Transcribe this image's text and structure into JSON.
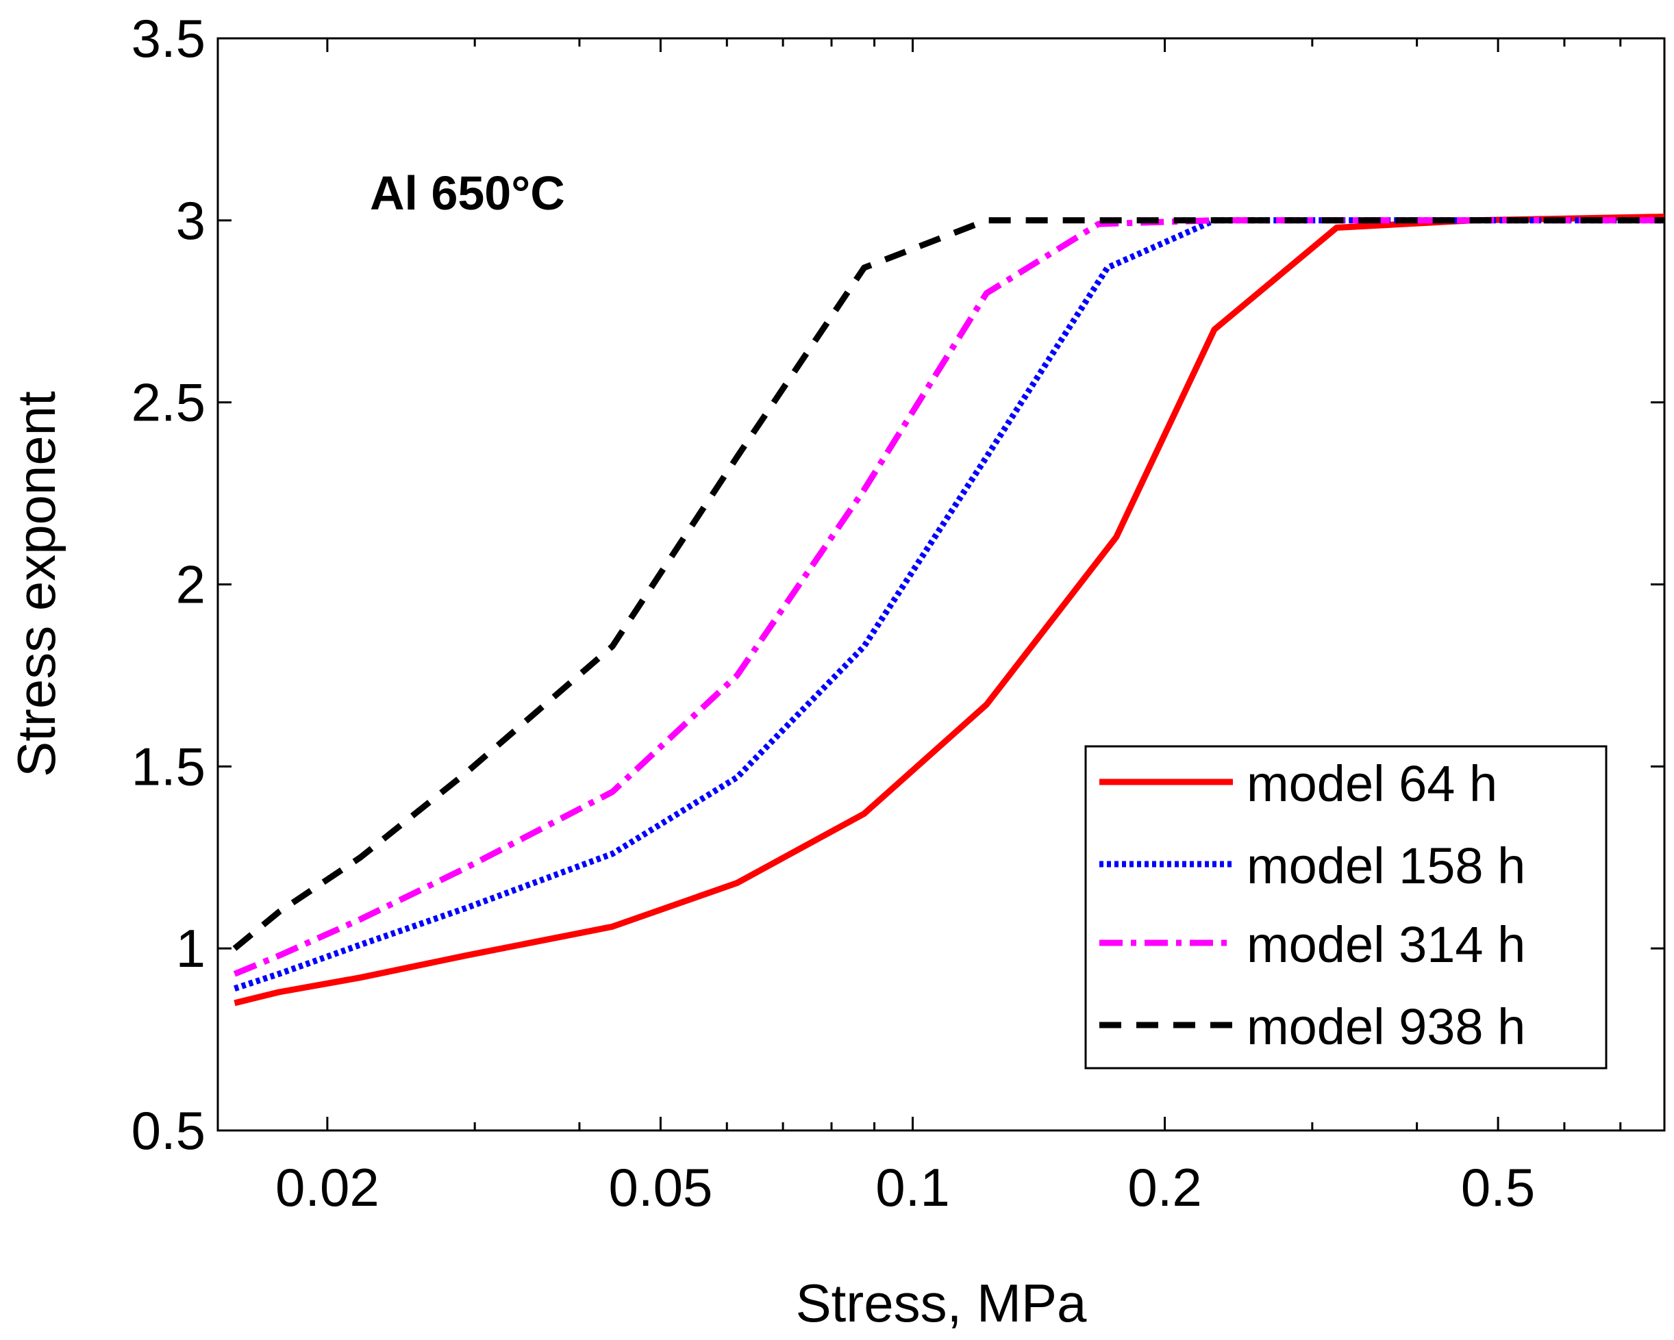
{
  "chart_data": {
    "type": "line",
    "title": "",
    "annotation": "Al 650°C",
    "xlabel": "Stress, MPa",
    "ylabel": "Stress exponent",
    "xscale": "log",
    "xlim": [
      0.0148,
      0.79
    ],
    "ylim": [
      0.5,
      3.5
    ],
    "xticks_major": [
      0.02,
      0.05,
      0.1,
      0.2,
      0.5
    ],
    "xtick_labels": [
      "0.02",
      "0.05",
      "0.1",
      "0.2",
      "0.5"
    ],
    "xticks_minor": [
      0.03,
      0.04,
      0.06,
      0.07,
      0.08,
      0.09,
      0.3,
      0.4,
      0.6,
      0.7
    ],
    "yticks": [
      0.5,
      1,
      1.5,
      2,
      2.5,
      3,
      3.5
    ],
    "ytick_labels": [
      "0.5",
      "1",
      "1.5",
      "2",
      "2.5",
      "3",
      "3.5"
    ],
    "legend_position": "bottom-right",
    "series": [
      {
        "name": "model 64 h",
        "color": "#ff0000",
        "style": "solid",
        "x": [
          0.0155,
          0.0175,
          0.0219,
          0.0292,
          0.0438,
          0.0617,
          0.0875,
          0.1225,
          0.175,
          0.2292,
          0.3208,
          0.4667,
          0.79
        ],
        "y": [
          0.85,
          0.88,
          0.92,
          0.98,
          1.06,
          1.18,
          1.37,
          1.67,
          2.13,
          2.7,
          2.98,
          3.0,
          3.01
        ]
      },
      {
        "name": "model 158 h",
        "color": "#0000ff",
        "style": "dotted",
        "x": [
          0.0155,
          0.0175,
          0.0219,
          0.0292,
          0.0438,
          0.0617,
          0.0875,
          0.1225,
          0.1708,
          0.2292,
          0.3208,
          0.79
        ],
        "y": [
          0.89,
          0.93,
          1.01,
          1.11,
          1.26,
          1.47,
          1.83,
          2.35,
          2.87,
          3.0,
          3.0,
          3.0
        ]
      },
      {
        "name": "model 314 h",
        "color": "#ff00ff",
        "style": "dashdot",
        "x": [
          0.0155,
          0.0175,
          0.0219,
          0.0292,
          0.0438,
          0.0617,
          0.0875,
          0.1225,
          0.1667,
          0.2292,
          0.79
        ],
        "y": [
          0.93,
          0.98,
          1.08,
          1.22,
          1.43,
          1.75,
          2.26,
          2.8,
          2.99,
          3.0,
          3.0
        ]
      },
      {
        "name": "model 938 h",
        "color": "#000000",
        "style": "dashed",
        "x": [
          0.0155,
          0.0175,
          0.0219,
          0.0292,
          0.0438,
          0.0617,
          0.0875,
          0.1225,
          0.175,
          0.79
        ],
        "y": [
          1.0,
          1.1,
          1.25,
          1.48,
          1.83,
          2.35,
          2.87,
          3.0,
          3.0,
          3.0
        ]
      }
    ]
  }
}
